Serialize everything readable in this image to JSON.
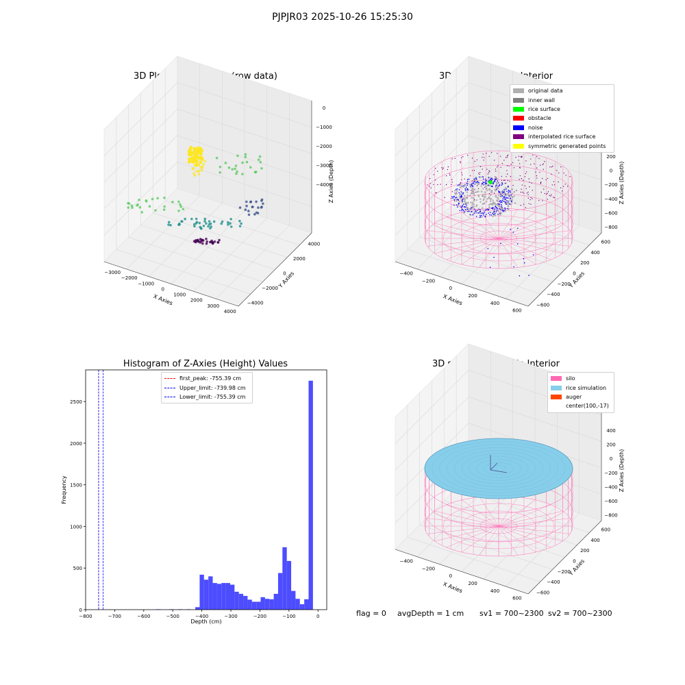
{
  "suptitle": "PJPJR03 2025-10-26 15:25:30",
  "colors": {
    "silo_pink": "#ff69b4",
    "rice_blue": "#87ceeb",
    "auger_orange": "#ff4500",
    "hist_blue": "#0000ff",
    "peak_red": "#ff0000"
  },
  "plot1": {
    "title": "3D Plot of Silo Interior(row data)",
    "xlabel": "X Axies",
    "ylabel": "Y Axies",
    "zlabel": "Z Axies (Depth)",
    "xticks": [
      "−3000",
      "−2000",
      "−1000",
      "0",
      "1000",
      "2000",
      "3000",
      "4000"
    ],
    "yticks": [
      "−4000",
      "−2000",
      "0",
      "2000",
      "4000"
    ],
    "zticks": [
      "0",
      "−1000",
      "−2000",
      "−3000",
      "−4000"
    ],
    "colormap": "viridis"
  },
  "plot2": {
    "title": "3D classify of Silo Interior",
    "xlabel": "X Axies",
    "ylabel": "Y Axies",
    "zlabel": "Z Axies (Depth)",
    "xticks": [
      "−400",
      "−200",
      "0",
      "200",
      "400",
      "600"
    ],
    "yticks": [
      "−600",
      "−400",
      "−200",
      "0",
      "200",
      "400",
      "600"
    ],
    "zticks": [
      "200",
      "0",
      "−200",
      "−400",
      "−600",
      "−800"
    ],
    "zticks_top_partial": "0",
    "legend": [
      {
        "label": "original data",
        "color": "#b0b0b0"
      },
      {
        "label": "inner wall",
        "color": "#808080"
      },
      {
        "label": "rice surface",
        "color": "#00ff00"
      },
      {
        "label": "obstacle",
        "color": "#ff0000"
      },
      {
        "label": "noise",
        "color": "#0000ff"
      },
      {
        "label": "interpolated rice surface",
        "color": "#800080"
      },
      {
        "label": "symmetric generated points",
        "color": "#ffff00"
      }
    ]
  },
  "plot3": {
    "title": "Histogram of Z-Axies (Height) Values",
    "legend": [
      {
        "label": "first_peak: -755.39 cm",
        "color": "#ff0000"
      },
      {
        "label": "Upper_limit: -739.98 cm",
        "color": "#0000ff"
      },
      {
        "label": "Lower_limit: -755.39 cm",
        "color": "#0000ff"
      }
    ]
  },
  "plot4": {
    "title": "3D simulation of Silo Interior",
    "xlabel": "X Axies",
    "ylabel": "Y Axies",
    "zlabel": "Z Axies (Depth)",
    "xticks": [
      "−400",
      "−200",
      "0",
      "200",
      "400",
      "600"
    ],
    "yticks": [
      "−600",
      "−400",
      "−200",
      "0",
      "200",
      "400",
      "600"
    ],
    "zticks": [
      "400",
      "200",
      "0",
      "−200",
      "−400",
      "−600",
      "−800"
    ],
    "legend": [
      {
        "label": "silo",
        "color": "#ff69b4"
      },
      {
        "label": "rice simulation",
        "color": "#87ceeb"
      },
      {
        "label": "auger",
        "color": "#ff4500"
      },
      {
        "label": "center(100,-17)",
        "color": ""
      }
    ]
  },
  "status": {
    "flag": "flag = 0",
    "avg_depth": "avgDepth = 1 cm",
    "sv1": "sv1 = 700~2300",
    "sv2": "sv2 = 700~2300"
  },
  "chart_data": [
    {
      "type": "scatter",
      "title": "3D Plot of Silo Interior(row data)",
      "xlabel": "X Axies",
      "ylabel": "Y Axies",
      "zlabel": "Z Axies (Depth)",
      "xlim": [
        -3000,
        4500
      ],
      "ylim": [
        -4500,
        4500
      ],
      "zlim": [
        -4500,
        0
      ]
    },
    {
      "type": "scatter",
      "title": "3D classify of Silo Interior",
      "xlabel": "X Axies",
      "ylabel": "Y Axies",
      "zlabel": "Z Axies (Depth)",
      "xlim": [
        -500,
        700
      ],
      "ylim": [
        -700,
        700
      ],
      "zlim": [
        -900,
        300
      ]
    },
    {
      "type": "bar",
      "title": "Histogram of Z-Axies (Height) Values",
      "xlabel": "Depth (cm)",
      "ylabel": "Frequency",
      "xlim": [
        -800,
        30
      ],
      "ylim": [
        0,
        2880
      ],
      "xticks": [
        -800,
        -700,
        -600,
        -500,
        -400,
        -300,
        -200,
        -100,
        0
      ],
      "yticks": [
        0,
        500,
        1000,
        1500,
        2000,
        2500
      ],
      "bin_width": 15,
      "bins": [
        {
          "x": -550,
          "y": 5
        },
        {
          "x": -505,
          "y": 5
        },
        {
          "x": -475,
          "y": 5
        },
        {
          "x": -445,
          "y": 5
        },
        {
          "x": -415,
          "y": 30
        },
        {
          "x": -400,
          "y": 420
        },
        {
          "x": -385,
          "y": 360
        },
        {
          "x": -370,
          "y": 400
        },
        {
          "x": -355,
          "y": 320
        },
        {
          "x": -340,
          "y": 310
        },
        {
          "x": -325,
          "y": 320
        },
        {
          "x": -310,
          "y": 320
        },
        {
          "x": -295,
          "y": 300
        },
        {
          "x": -280,
          "y": 215
        },
        {
          "x": -265,
          "y": 190
        },
        {
          "x": -250,
          "y": 165
        },
        {
          "x": -235,
          "y": 120
        },
        {
          "x": -220,
          "y": 95
        },
        {
          "x": -205,
          "y": 95
        },
        {
          "x": -190,
          "y": 150
        },
        {
          "x": -175,
          "y": 130
        },
        {
          "x": -160,
          "y": 125
        },
        {
          "x": -145,
          "y": 190
        },
        {
          "x": -130,
          "y": 440
        },
        {
          "x": -115,
          "y": 750
        },
        {
          "x": -100,
          "y": 585
        },
        {
          "x": -85,
          "y": 225
        },
        {
          "x": -70,
          "y": 130
        },
        {
          "x": -55,
          "y": 65
        },
        {
          "x": -40,
          "y": 125
        },
        {
          "x": -25,
          "y": 2750
        }
      ],
      "vlines": [
        {
          "label": "first_peak: -755.39 cm",
          "x": -755.39,
          "color": "#ff0000"
        },
        {
          "label": "Upper_limit: -739.98 cm",
          "x": -739.98,
          "color": "#0000ff"
        },
        {
          "label": "Lower_limit: -755.39 cm",
          "x": -755.39,
          "color": "#0000ff"
        }
      ],
      "legend_position": "top-center"
    },
    {
      "type": "scatter",
      "title": "3D simulation of Silo Interior",
      "xlabel": "X Axies",
      "ylabel": "Y Axies",
      "zlabel": "Z Axies (Depth)",
      "xlim": [
        -500,
        700
      ],
      "ylim": [
        -700,
        700
      ],
      "zlim": [
        -900,
        500
      ]
    }
  ]
}
